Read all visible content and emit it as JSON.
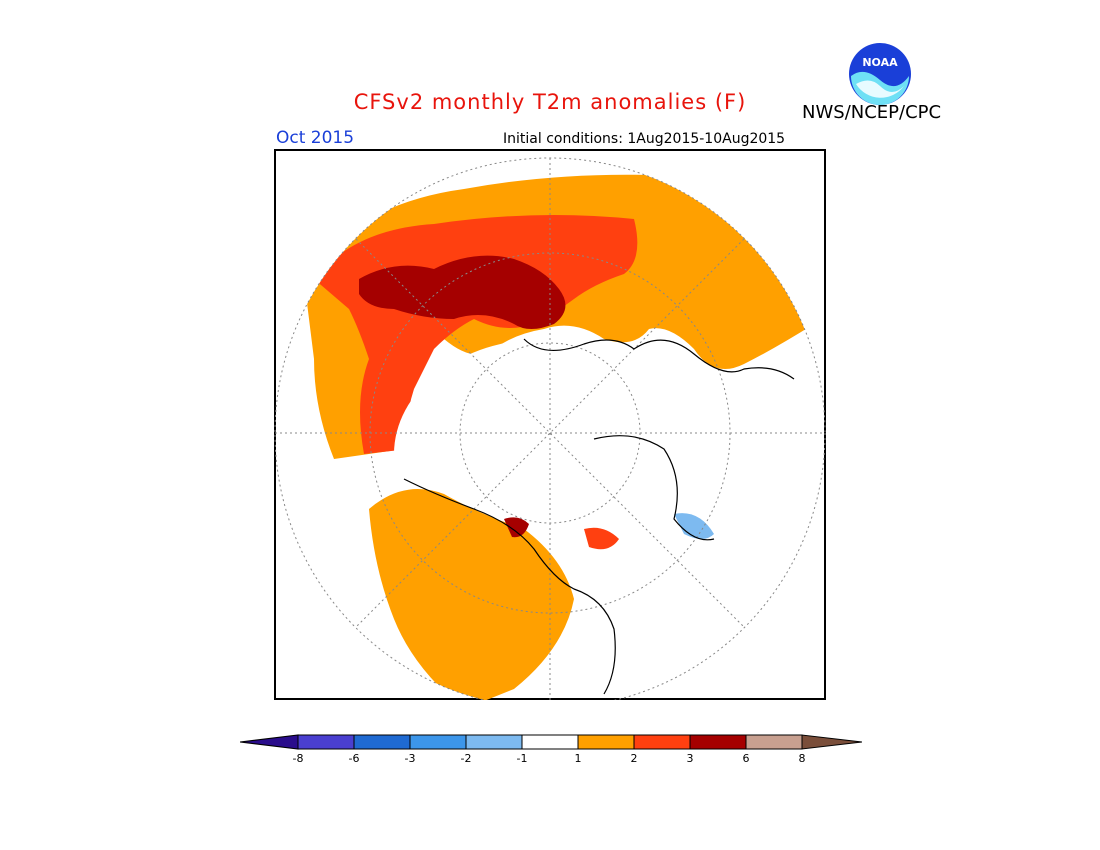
{
  "header": {
    "title": "CFSv2 monthly T2m anomalies (F)",
    "organization": "NWS/NCEP/CPC",
    "period": "Oct 2015",
    "initial_conditions": "Initial conditions: 1Aug2015-10Aug2015",
    "logo_text": "NOAA"
  },
  "legend": {
    "bins": [
      {
        "color": "#2a0d8c"
      },
      {
        "color": "#4a3fd0"
      },
      {
        "color": "#1f6ad2"
      },
      {
        "color": "#3c96ea"
      },
      {
        "color": "#7dbaf0"
      },
      {
        "color": "#ffffff"
      },
      {
        "color": "#ffa000"
      },
      {
        "color": "#ff4010"
      },
      {
        "color": "#a50000"
      },
      {
        "color": "#c8a090"
      },
      {
        "color": "#7a4e3a"
      }
    ],
    "labels": [
      "-8",
      "-6",
      "-3",
      "-2",
      "-1",
      "1",
      "2",
      "3",
      "6",
      "8"
    ]
  },
  "colors": {
    "title": "#e8140c",
    "period": "#1a3fd8",
    "anomaly_1_2": "#ffa000",
    "anomaly_2_3": "#ff4010",
    "anomaly_3_6": "#a50000",
    "anomaly_neg_1_2": "#7dbaf0"
  }
}
